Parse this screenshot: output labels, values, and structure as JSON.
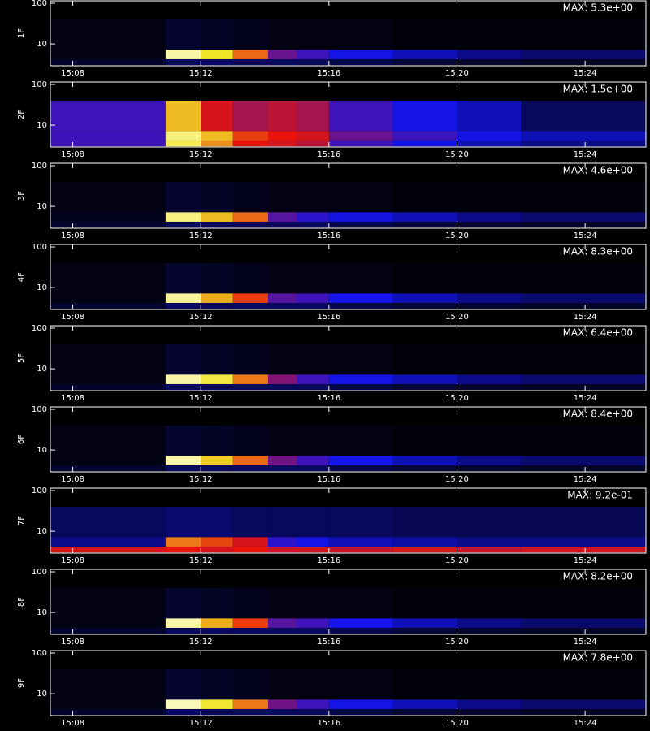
{
  "chart_data": [
    {
      "type": "heatmap",
      "y_label": "1F",
      "annotation": "MAX: 5.3e+00",
      "log_y": true,
      "xlim": [
        7.3,
        25.9
      ],
      "ylim": [
        2.9,
        115
      ],
      "yticks": [
        10,
        100
      ],
      "xticks": [
        {
          "value": 8,
          "label": "15:08"
        },
        {
          "value": 12,
          "label": "15:12"
        },
        {
          "value": 16,
          "label": "15:16"
        },
        {
          "value": 20,
          "label": "15:20"
        },
        {
          "value": 24,
          "label": "15:24"
        }
      ],
      "x_edges": [
        7.3,
        10.9,
        12,
        13,
        14.1,
        15,
        16,
        18,
        20,
        22,
        25.9
      ],
      "y_edges": [
        3,
        4.2,
        7.2,
        40
      ],
      "z": [
        [
          0.05,
          0.1,
          0.1,
          0.1,
          0.1,
          0.1,
          0.08,
          0.06,
          0.05,
          0.04
        ],
        [
          0.02,
          0.9,
          0.75,
          0.6,
          0.35,
          0.3,
          0.25,
          0.2,
          0.15,
          0.12
        ],
        [
          0.02,
          0.05,
          0.04,
          0.03,
          0.02,
          0.02,
          0.02,
          0.01,
          0.01,
          0.01
        ]
      ]
    },
    {
      "type": "heatmap",
      "y_label": "2F",
      "annotation": "MAX: 1.5e+00",
      "log_y": true,
      "xlim": [
        7.3,
        25.9
      ],
      "ylim": [
        2.9,
        115
      ],
      "yticks": [
        10,
        100
      ],
      "xticks": [
        {
          "value": 8,
          "label": "15:08"
        },
        {
          "value": 12,
          "label": "15:12"
        },
        {
          "value": 16,
          "label": "15:16"
        },
        {
          "value": 20,
          "label": "15:20"
        },
        {
          "value": 24,
          "label": "15:24"
        }
      ],
      "x_edges": [
        7.3,
        10.9,
        12,
        13,
        14.1,
        15,
        16,
        18,
        20,
        22,
        25.9
      ],
      "y_edges": [
        3,
        4.2,
        7.2,
        40
      ],
      "z": [
        [
          0.3,
          0.8,
          0.65,
          0.5,
          0.48,
          0.45,
          0.3,
          0.25,
          0.2,
          0.15
        ],
        [
          0.3,
          0.85,
          0.7,
          0.55,
          0.5,
          0.48,
          0.35,
          0.3,
          0.25,
          0.2
        ],
        [
          0.3,
          0.7,
          0.48,
          0.42,
          0.45,
          0.42,
          0.3,
          0.25,
          0.2,
          0.1
        ]
      ]
    },
    {
      "type": "heatmap",
      "y_label": "3F",
      "annotation": "MAX: 4.6e+00",
      "log_y": true,
      "xlim": [
        7.3,
        25.9
      ],
      "ylim": [
        2.9,
        115
      ],
      "yticks": [
        10,
        100
      ],
      "xticks": [
        {
          "value": 8,
          "label": "15:08"
        },
        {
          "value": 12,
          "label": "15:12"
        },
        {
          "value": 16,
          "label": "15:16"
        },
        {
          "value": 20,
          "label": "15:20"
        },
        {
          "value": 24,
          "label": "15:24"
        }
      ],
      "x_edges": [
        7.3,
        10.9,
        12,
        13,
        14.1,
        15,
        16,
        18,
        20,
        22,
        25.9
      ],
      "y_edges": [
        3,
        4.2,
        7.2,
        40
      ],
      "z": [
        [
          0.05,
          0.1,
          0.1,
          0.1,
          0.1,
          0.1,
          0.08,
          0.06,
          0.05,
          0.04
        ],
        [
          0.03,
          0.85,
          0.7,
          0.6,
          0.33,
          0.28,
          0.24,
          0.2,
          0.15,
          0.12
        ],
        [
          0.02,
          0.05,
          0.04,
          0.03,
          0.02,
          0.02,
          0.02,
          0.01,
          0.01,
          0.01
        ]
      ]
    },
    {
      "type": "heatmap",
      "y_label": "4F",
      "annotation": "MAX: 8.3e+00",
      "log_y": true,
      "xlim": [
        7.3,
        25.9
      ],
      "ylim": [
        2.9,
        115
      ],
      "yticks": [
        10,
        100
      ],
      "xticks": [
        {
          "value": 8,
          "label": "15:08"
        },
        {
          "value": 12,
          "label": "15:12"
        },
        {
          "value": 16,
          "label": "15:16"
        },
        {
          "value": 20,
          "label": "15:20"
        },
        {
          "value": 24,
          "label": "15:24"
        }
      ],
      "x_edges": [
        7.3,
        10.9,
        12,
        13,
        14.1,
        15,
        16,
        18,
        20,
        22,
        25.9
      ],
      "y_edges": [
        3,
        4.2,
        7.2,
        40
      ],
      "z": [
        [
          0.05,
          0.1,
          0.1,
          0.1,
          0.1,
          0.1,
          0.08,
          0.06,
          0.05,
          0.04
        ],
        [
          0.02,
          0.88,
          0.68,
          0.55,
          0.33,
          0.3,
          0.25,
          0.2,
          0.15,
          0.12
        ],
        [
          0.02,
          0.05,
          0.04,
          0.03,
          0.02,
          0.02,
          0.02,
          0.01,
          0.01,
          0.01
        ]
      ]
    },
    {
      "type": "heatmap",
      "y_label": "5F",
      "annotation": "MAX: 6.4e+00",
      "log_y": true,
      "xlim": [
        7.3,
        25.9
      ],
      "ylim": [
        2.9,
        115
      ],
      "yticks": [
        10,
        100
      ],
      "xticks": [
        {
          "value": 8,
          "label": "15:08"
        },
        {
          "value": 12,
          "label": "15:12"
        },
        {
          "value": 16,
          "label": "15:16"
        },
        {
          "value": 20,
          "label": "15:20"
        },
        {
          "value": 24,
          "label": "15:24"
        }
      ],
      "x_edges": [
        7.3,
        10.9,
        12,
        13,
        14.1,
        15,
        16,
        18,
        20,
        22,
        25.9
      ],
      "y_edges": [
        3,
        4.2,
        7.2,
        40
      ],
      "z": [
        [
          0.05,
          0.1,
          0.1,
          0.1,
          0.1,
          0.1,
          0.08,
          0.06,
          0.05,
          0.04
        ],
        [
          0.02,
          0.9,
          0.78,
          0.62,
          0.38,
          0.3,
          0.25,
          0.2,
          0.15,
          0.12
        ],
        [
          0.02,
          0.05,
          0.04,
          0.03,
          0.02,
          0.02,
          0.02,
          0.01,
          0.01,
          0.01
        ]
      ]
    },
    {
      "type": "heatmap",
      "y_label": "6F",
      "annotation": "MAX: 8.4e+00",
      "log_y": true,
      "xlim": [
        7.3,
        25.9
      ],
      "ylim": [
        2.9,
        115
      ],
      "yticks": [
        10,
        100
      ],
      "xticks": [
        {
          "value": 8,
          "label": "15:08"
        },
        {
          "value": 12,
          "label": "15:12"
        },
        {
          "value": 16,
          "label": "15:16"
        },
        {
          "value": 20,
          "label": "15:20"
        },
        {
          "value": 24,
          "label": "15:24"
        }
      ],
      "x_edges": [
        7.3,
        10.9,
        12,
        13,
        14.1,
        15,
        16,
        18,
        20,
        22,
        25.9
      ],
      "y_edges": [
        3,
        4.2,
        7.2,
        40
      ],
      "z": [
        [
          0.05,
          0.1,
          0.1,
          0.1,
          0.1,
          0.1,
          0.08,
          0.06,
          0.05,
          0.04
        ],
        [
          0.02,
          0.9,
          0.72,
          0.6,
          0.36,
          0.3,
          0.25,
          0.2,
          0.15,
          0.12
        ],
        [
          0.02,
          0.05,
          0.04,
          0.03,
          0.02,
          0.02,
          0.02,
          0.01,
          0.01,
          0.01
        ]
      ]
    },
    {
      "type": "heatmap",
      "y_label": "7F",
      "annotation": "MAX: 9.2e-01",
      "log_y": true,
      "xlim": [
        7.3,
        25.9
      ],
      "ylim": [
        2.9,
        115
      ],
      "yticks": [
        10,
        100
      ],
      "xticks": [
        {
          "value": 8,
          "label": "15:08"
        },
        {
          "value": 12,
          "label": "15:12"
        },
        {
          "value": 16,
          "label": "15:16"
        },
        {
          "value": 20,
          "label": "15:20"
        },
        {
          "value": 24,
          "label": "15:24"
        }
      ],
      "x_edges": [
        7.3,
        10.9,
        12,
        13,
        14.1,
        15,
        16,
        18,
        20,
        22,
        25.9
      ],
      "y_edges": [
        3,
        4.2,
        7.2,
        40
      ],
      "z": [
        [
          0.48,
          0.5,
          0.48,
          0.5,
          0.47,
          0.48,
          0.46,
          0.48,
          0.46,
          0.47
        ],
        [
          0.15,
          0.62,
          0.56,
          0.48,
          0.28,
          0.25,
          0.2,
          0.18,
          0.15,
          0.15
        ],
        [
          0.1,
          0.12,
          0.12,
          0.1,
          0.1,
          0.1,
          0.1,
          0.09,
          0.09,
          0.09
        ]
      ]
    },
    {
      "type": "heatmap",
      "y_label": "8F",
      "annotation": "MAX: 8.2e+00",
      "log_y": true,
      "xlim": [
        7.3,
        25.9
      ],
      "ylim": [
        2.9,
        115
      ],
      "yticks": [
        10,
        100
      ],
      "xticks": [
        {
          "value": 8,
          "label": "15:08"
        },
        {
          "value": 12,
          "label": "15:12"
        },
        {
          "value": 16,
          "label": "15:16"
        },
        {
          "value": 20,
          "label": "15:20"
        },
        {
          "value": 24,
          "label": "15:24"
        }
      ],
      "x_edges": [
        7.3,
        10.9,
        12,
        13,
        14.1,
        15,
        16,
        18,
        20,
        22,
        25.9
      ],
      "y_edges": [
        3,
        4.2,
        7.2,
        40
      ],
      "z": [
        [
          0.05,
          0.1,
          0.1,
          0.1,
          0.1,
          0.1,
          0.08,
          0.06,
          0.05,
          0.04
        ],
        [
          0.02,
          0.9,
          0.68,
          0.55,
          0.33,
          0.3,
          0.25,
          0.2,
          0.15,
          0.12
        ],
        [
          0.02,
          0.05,
          0.04,
          0.03,
          0.02,
          0.02,
          0.02,
          0.01,
          0.01,
          0.01
        ]
      ]
    },
    {
      "type": "heatmap",
      "y_label": "9F",
      "annotation": "MAX: 7.8e+00",
      "log_y": true,
      "xlim": [
        7.3,
        25.9
      ],
      "ylim": [
        2.9,
        115
      ],
      "yticks": [
        10,
        100
      ],
      "xticks": [
        {
          "value": 8,
          "label": "15:08"
        },
        {
          "value": 12,
          "label": "15:12"
        },
        {
          "value": 16,
          "label": "15:16"
        },
        {
          "value": 20,
          "label": "15:20"
        },
        {
          "value": 24,
          "label": "15:24"
        }
      ],
      "x_edges": [
        7.3,
        10.9,
        12,
        13,
        14.1,
        15,
        16,
        18,
        20,
        22,
        25.9
      ],
      "y_edges": [
        3,
        4.2,
        7.2,
        40
      ],
      "z": [
        [
          0.05,
          0.1,
          0.1,
          0.1,
          0.1,
          0.1,
          0.08,
          0.06,
          0.05,
          0.04
        ],
        [
          0.02,
          0.92,
          0.76,
          0.62,
          0.36,
          0.3,
          0.25,
          0.2,
          0.15,
          0.12
        ],
        [
          0.02,
          0.05,
          0.04,
          0.03,
          0.02,
          0.02,
          0.02,
          0.01,
          0.01,
          0.01
        ]
      ]
    }
  ]
}
